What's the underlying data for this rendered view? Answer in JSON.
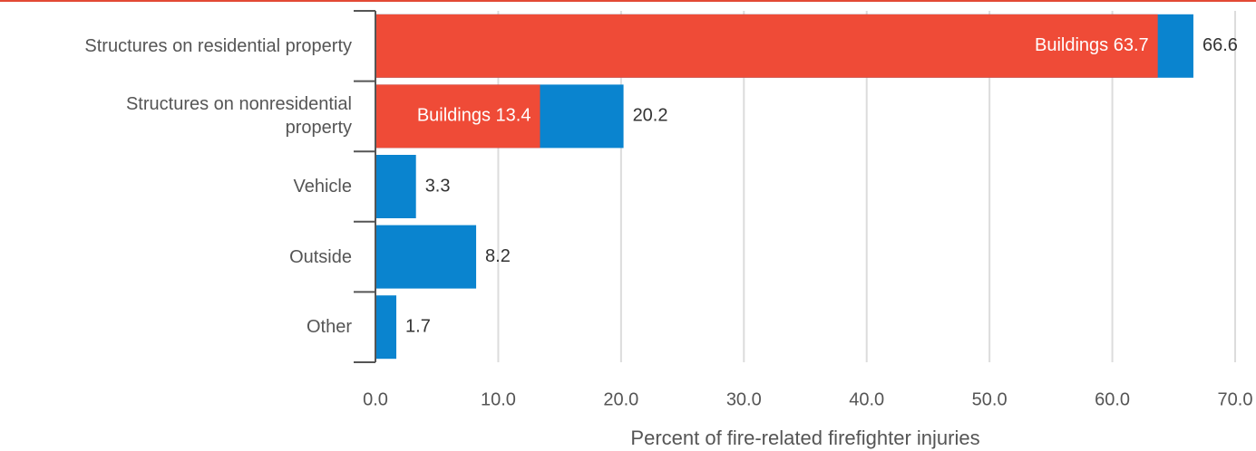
{
  "chart_data": {
    "type": "bar",
    "orientation": "horizontal",
    "categories": [
      "Structures on residential property",
      "Structures on nonresidential property",
      "Vehicle",
      "Outside",
      "Other"
    ],
    "series": [
      {
        "color": "#0a84cf",
        "values": [
          66.6,
          20.2,
          3.3,
          8.2,
          1.7
        ]
      },
      {
        "color": "#ef4b37",
        "values": [
          63.7,
          13.4,
          null,
          null,
          null
        ],
        "value_labels": [
          "Buildings 63.7",
          "Buildings 13.4",
          null,
          null,
          null
        ]
      }
    ],
    "xlabel": "Percent of fire-related firefighter injuries",
    "xlim": [
      0,
      70
    ],
    "xticks": [
      {
        "value": 0,
        "label": "0.0"
      },
      {
        "value": 10,
        "label": "10.0"
      },
      {
        "value": 20,
        "label": "20.0"
      },
      {
        "value": 30,
        "label": "30.0"
      },
      {
        "value": 40,
        "label": "40.0"
      },
      {
        "value": 50,
        "label": "50.0"
      },
      {
        "value": 60,
        "label": "60.0"
      },
      {
        "value": 70,
        "label": "70.0"
      }
    ],
    "grid": true
  }
}
